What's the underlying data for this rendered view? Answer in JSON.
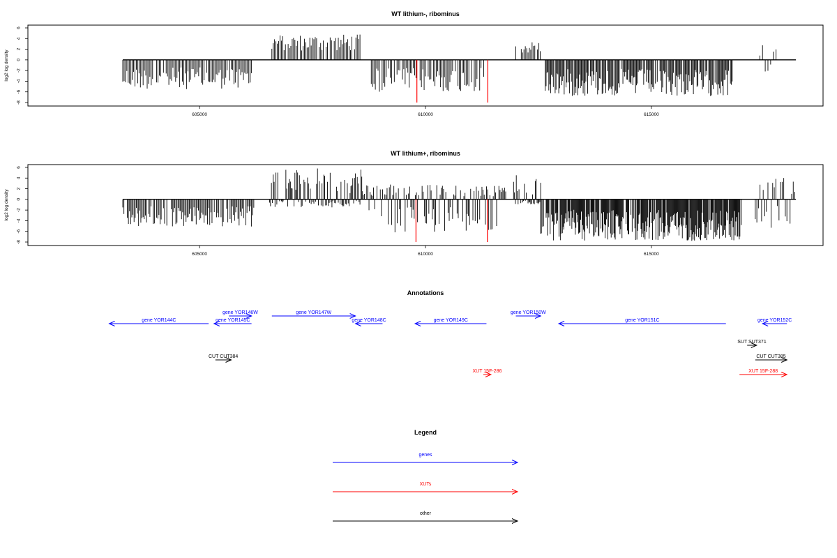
{
  "chart_data": [
    {
      "type": "bar",
      "title": "WT lithium-, ribominus",
      "xlabel": "",
      "ylabel": "log2 log density",
      "xlim": [
        601200,
        618800
      ],
      "ylim": [
        -8,
        6
      ],
      "y_ticks": [
        -8,
        -6,
        -4,
        -2,
        0,
        2,
        4,
        6
      ],
      "x_ticks": [
        605000,
        610000,
        615000
      ],
      "x_tick_labels": [
        "605000",
        "610000",
        "615000"
      ],
      "grid": false,
      "regions": [
        {
          "start": 603300,
          "end": 606200,
          "min": -5.5,
          "max": 0,
          "step": 30
        },
        {
          "start": 606600,
          "end": 608550,
          "min": 0,
          "max": 4.8,
          "step": 30
        },
        {
          "start": 608800,
          "end": 611300,
          "min": -6.0,
          "max": 0,
          "step": 30
        },
        {
          "start": 612000,
          "end": 612550,
          "min": 0,
          "max": 3.5,
          "step": 30
        },
        {
          "start": 612650,
          "end": 616800,
          "min": -6.8,
          "max": 0,
          "step": 20
        },
        {
          "start": 617400,
          "end": 617800,
          "min": -3.5,
          "max": 2.8,
          "step": 60
        }
      ],
      "highlight_bars": [
        {
          "x": 609810,
          "value": -8,
          "color": "#ff0000"
        },
        {
          "x": 611380,
          "value": -8,
          "color": "#ff0000"
        }
      ]
    },
    {
      "type": "bar",
      "title": "WT lithium+, ribominus",
      "xlabel": "",
      "ylabel": "log2 log density",
      "xlim": [
        601200,
        618800
      ],
      "ylim": [
        -8,
        6
      ],
      "y_ticks": [
        -8,
        -6,
        -4,
        -2,
        0,
        2,
        4,
        6
      ],
      "x_ticks": [
        605000,
        610000,
        615000
      ],
      "x_tick_labels": [
        "605000",
        "610000",
        "615000"
      ],
      "grid": false,
      "regions": [
        {
          "start": 603300,
          "end": 606200,
          "min": -5.2,
          "max": 0,
          "step": 25
        },
        {
          "start": 606550,
          "end": 608600,
          "min": -1.5,
          "max": 5.8,
          "step": 20
        },
        {
          "start": 608600,
          "end": 611800,
          "min": -6.2,
          "max": 2.8,
          "step": 25
        },
        {
          "start": 611950,
          "end": 612550,
          "min": -1.0,
          "max": 4.6,
          "step": 20
        },
        {
          "start": 612550,
          "end": 617000,
          "min": -7.8,
          "max": 0,
          "step": 15
        },
        {
          "start": 617300,
          "end": 618200,
          "min": -5.5,
          "max": 4.3,
          "step": 35
        }
      ],
      "highlight_bars": [
        {
          "x": 609790,
          "value": -8,
          "color": "#ff0000"
        },
        {
          "x": 611370,
          "value": -8,
          "color": "#ff0000"
        }
      ]
    }
  ],
  "annotations": {
    "title": "Annotations",
    "xlim": [
      601200,
      618800
    ],
    "items": [
      {
        "label": "gene YOR144C",
        "start": 603000,
        "end": 605200,
        "dir": "left",
        "row": 2,
        "color": "#0000ff"
      },
      {
        "label": "gene YOR145C",
        "start": 605320,
        "end": 606150,
        "dir": "left",
        "row": 2,
        "color": "#0000ff"
      },
      {
        "label": "gene YOR146W",
        "start": 605650,
        "end": 606150,
        "dir": "right",
        "row": 1,
        "color": "#0000ff"
      },
      {
        "label": "gene YOR147W",
        "start": 606600,
        "end": 608450,
        "dir": "right",
        "row": 1,
        "color": "#0000ff"
      },
      {
        "label": "gene YOR148C",
        "start": 608450,
        "end": 609050,
        "dir": "left",
        "row": 2,
        "color": "#0000ff"
      },
      {
        "label": "gene YOR149C",
        "start": 609770,
        "end": 611350,
        "dir": "left",
        "row": 2,
        "color": "#0000ff"
      },
      {
        "label": "gene YOR150W",
        "start": 612000,
        "end": 612550,
        "dir": "right",
        "row": 1,
        "color": "#0000ff"
      },
      {
        "label": "gene YOR151C",
        "start": 612950,
        "end": 616650,
        "dir": "left",
        "row": 2,
        "color": "#0000ff"
      },
      {
        "label": "gene YOR152C",
        "start": 617460,
        "end": 618000,
        "dir": "left",
        "row": 2,
        "color": "#0000ff"
      },
      {
        "label": "SUT SUT371",
        "start": 617120,
        "end": 617330,
        "dir": "right",
        "row": 4,
        "color": "#000000"
      },
      {
        "label": "CUT CUT384",
        "start": 605350,
        "end": 605700,
        "dir": "right",
        "row": 5,
        "color": "#000000"
      },
      {
        "label": "CUT CUT385",
        "start": 617300,
        "end": 618000,
        "dir": "right",
        "row": 5,
        "color": "#000000"
      },
      {
        "label": "XUT 15F-286",
        "start": 611280,
        "end": 611450,
        "dir": "right",
        "row": 6,
        "color": "#ff0000"
      },
      {
        "label": "XUT 15F-288",
        "start": 616950,
        "end": 618000,
        "dir": "right",
        "row": 6,
        "color": "#ff0000"
      }
    ]
  },
  "legend": {
    "title": "Legend",
    "items": [
      {
        "label": "genes",
        "color": "#0000ff"
      },
      {
        "label": "XUTs",
        "color": "#ff0000"
      },
      {
        "label": "other",
        "color": "#000000"
      }
    ]
  }
}
